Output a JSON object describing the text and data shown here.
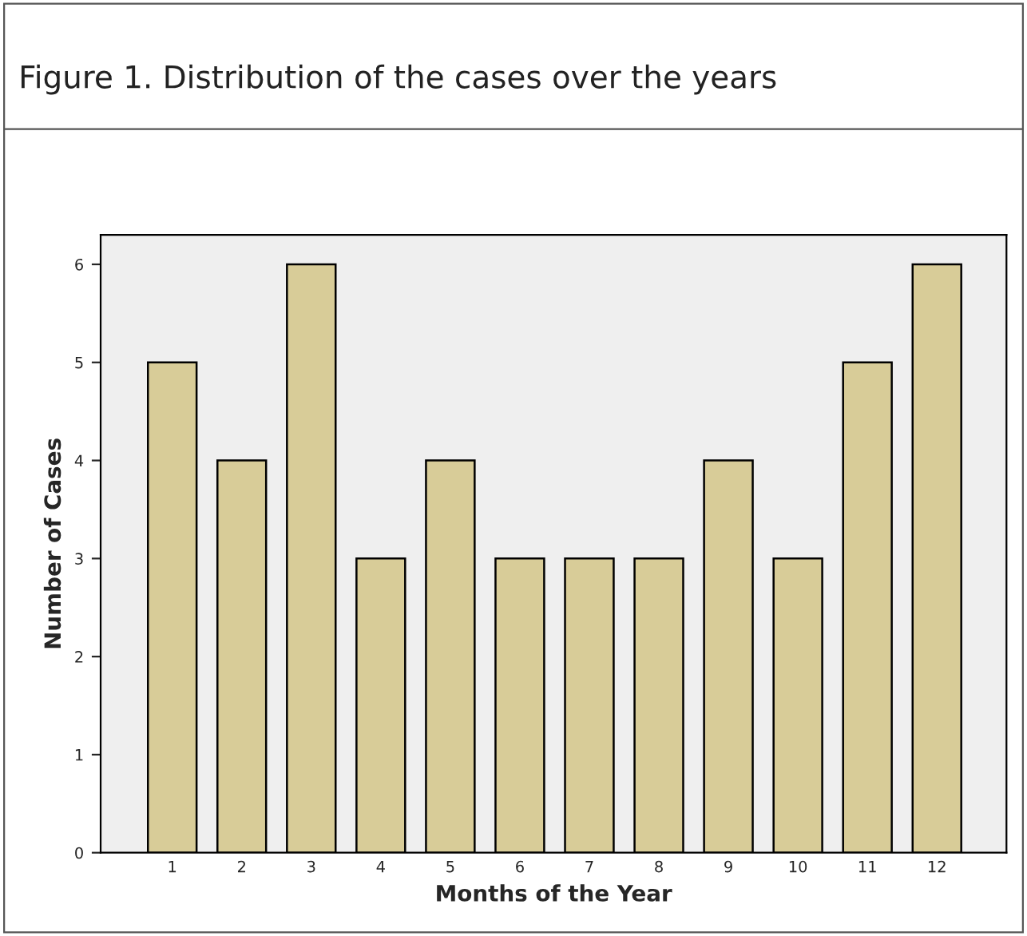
{
  "chart_data": {
    "type": "bar",
    "title": "Figure 1. Distribution of the cases over the years",
    "xlabel": "Months of the Year",
    "ylabel": "Number of Cases",
    "categories": [
      "1",
      "2",
      "3",
      "4",
      "5",
      "6",
      "7",
      "8",
      "9",
      "10",
      "11",
      "12"
    ],
    "values": [
      5,
      4,
      6,
      3,
      4,
      3,
      3,
      3,
      4,
      3,
      5,
      6
    ],
    "color": "#d8cc98",
    "ylim": [
      0,
      6.3
    ],
    "yticks": [
      0,
      1,
      2,
      3,
      4,
      5,
      6
    ],
    "grid": false,
    "legend": false
  }
}
